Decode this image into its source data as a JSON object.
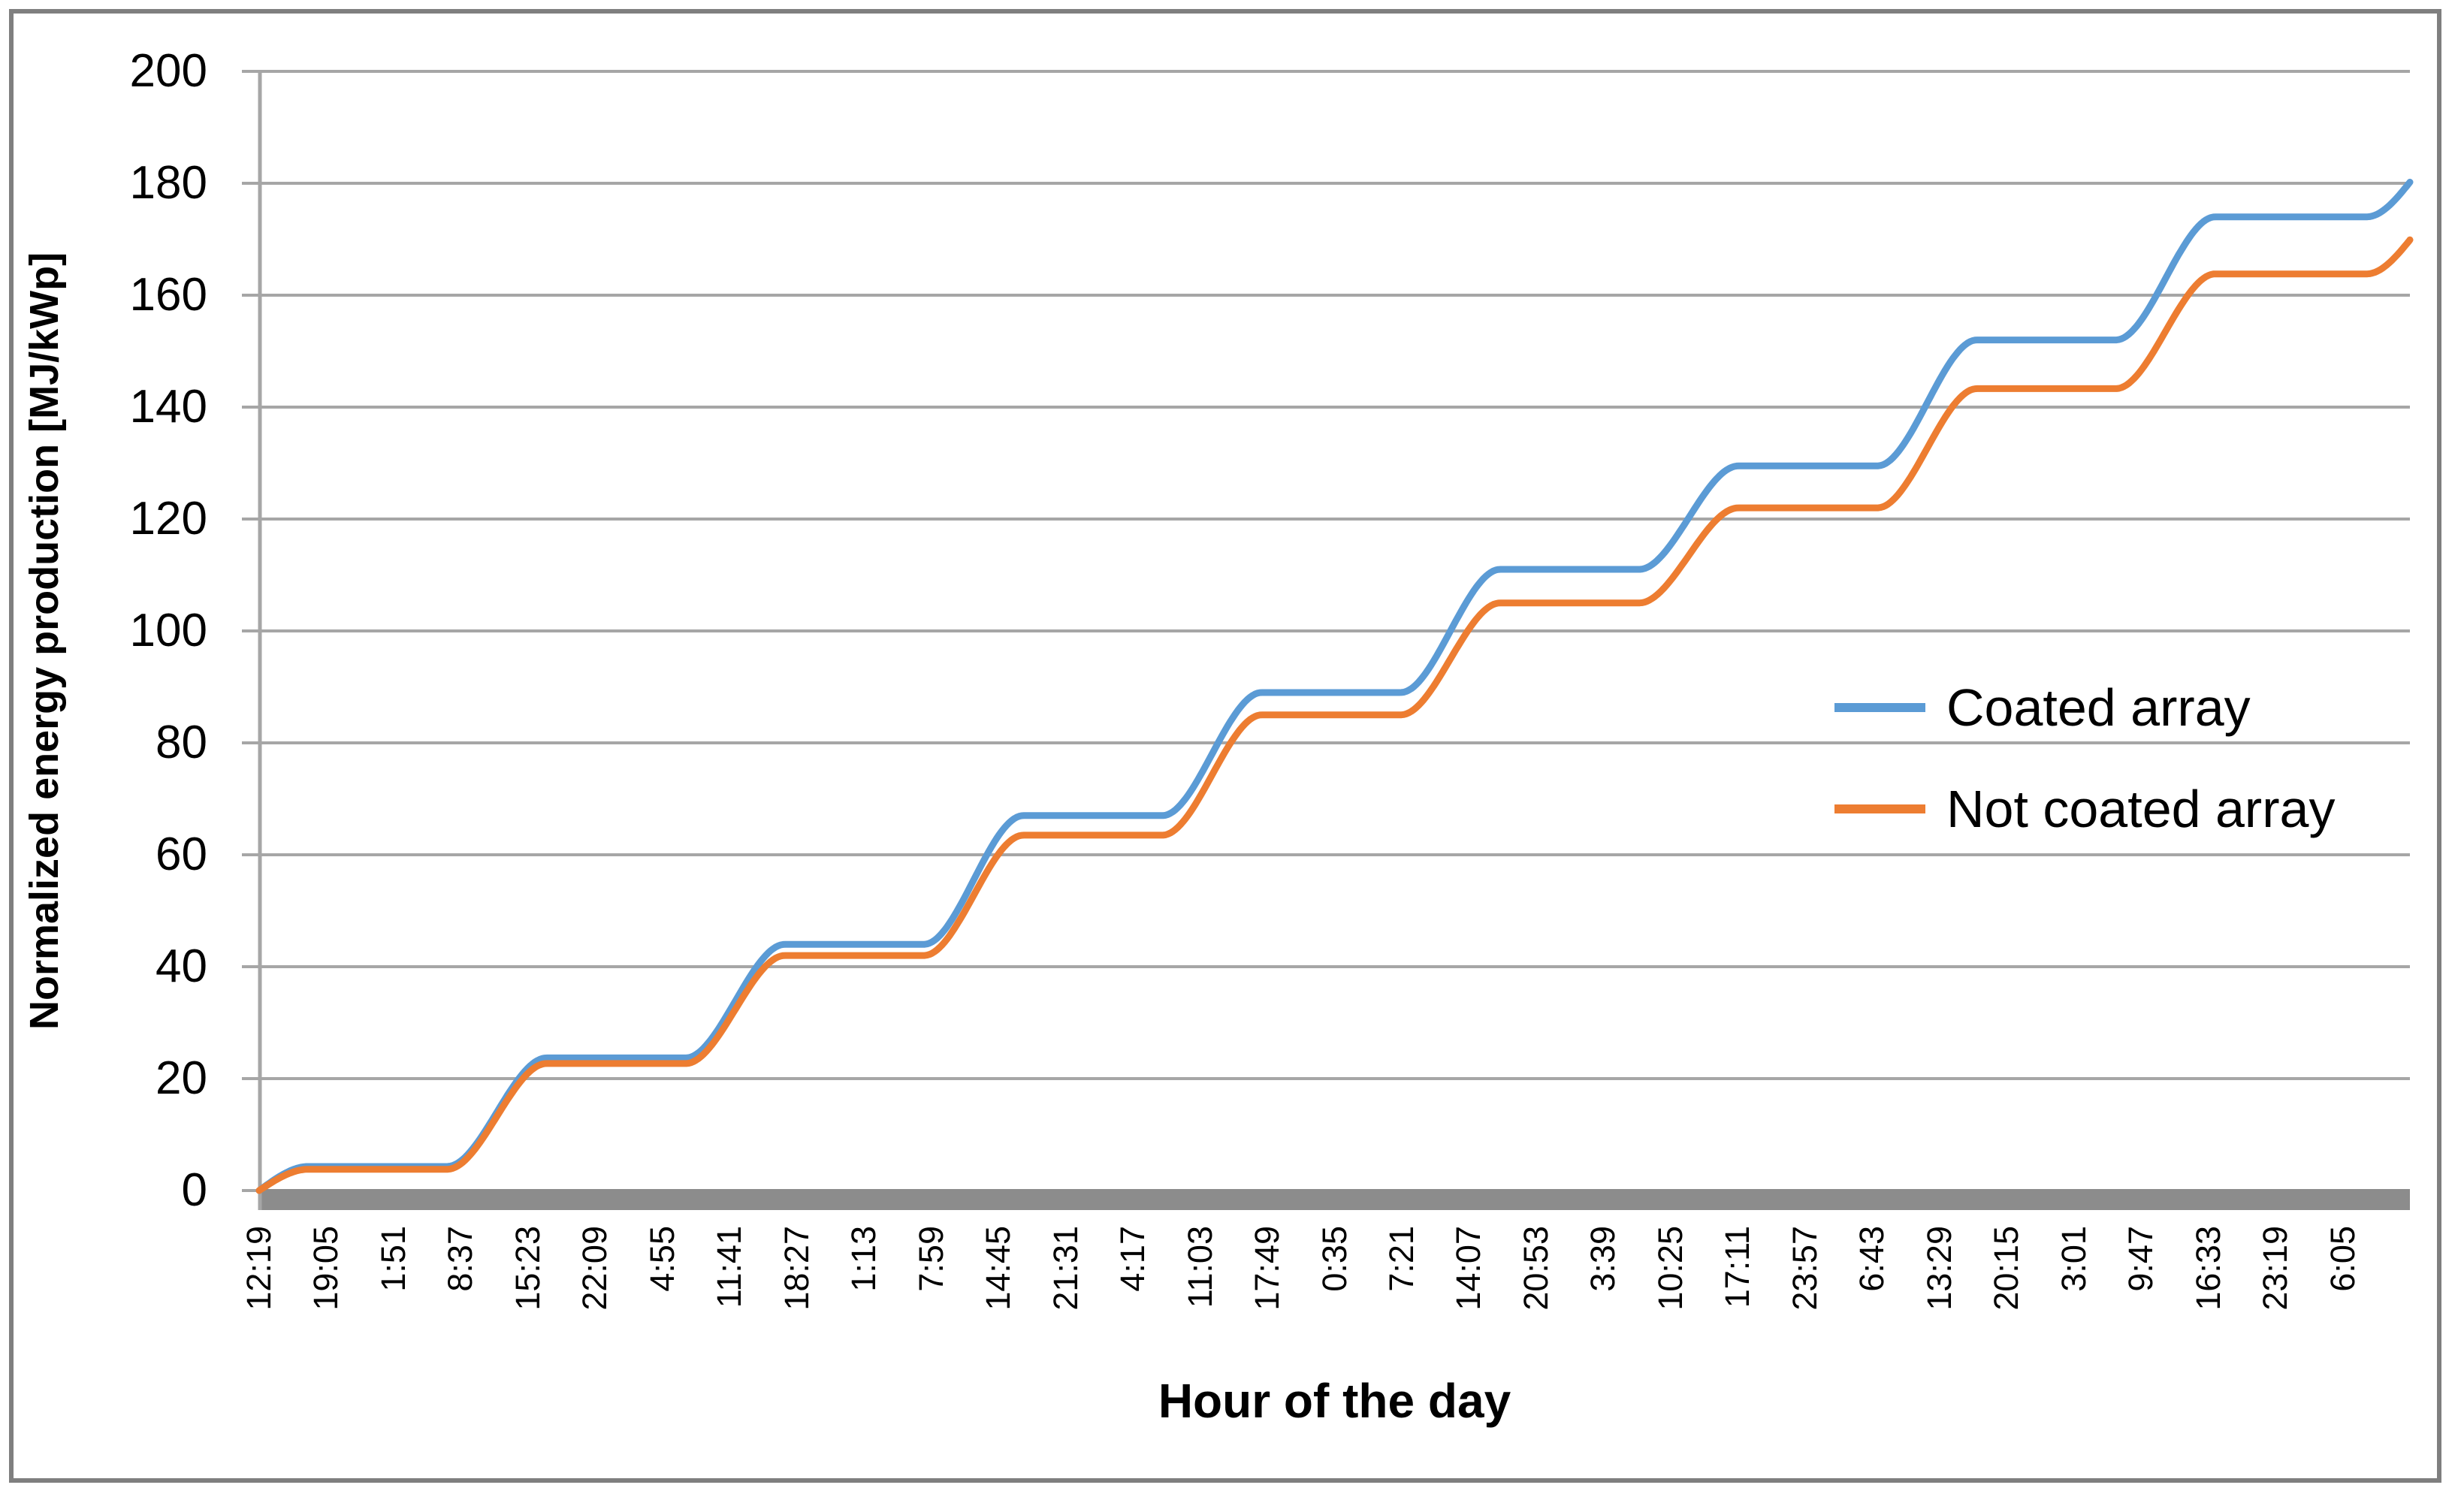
{
  "colors": {
    "background": "#FFFFFF",
    "frame_border": "#7F7F7F",
    "gridline": "#A6A6A6",
    "axis_band": "#8C8C8C",
    "text": "#000000",
    "series_coated": "#5B9BD5",
    "series_not_coated": "#ED7D31"
  },
  "chart_data": {
    "type": "line",
    "title": "",
    "ylabel": "Normalized energy production [MJ/kWp]",
    "xlabel": "Hour of the day",
    "ylim": [
      0,
      200
    ],
    "ytick_step": 20,
    "yticks": [
      0,
      20,
      40,
      60,
      80,
      100,
      120,
      140,
      160,
      180,
      200
    ],
    "grid": "horizontal",
    "legend_position": "inside-right-middle",
    "categories": [
      "12:19",
      "19:05",
      "1:51",
      "8:37",
      "15:23",
      "22:09",
      "4:55",
      "11:41",
      "18:27",
      "1:13",
      "7:59",
      "14:45",
      "21:31",
      "4:17",
      "11:03",
      "17:49",
      "0:35",
      "7:21",
      "14:07",
      "20:53",
      "3:39",
      "10:25",
      "17:11",
      "23:57",
      "6:43",
      "13:29",
      "20:15",
      "3:01",
      "9:47",
      "16:33",
      "23:19",
      "6:05"
    ],
    "x_tick_interval_hours": 6.7667,
    "series": [
      {
        "name": "Coated array",
        "color": "#5B9BD5",
        "plateaus": [
          4.3,
          23.7,
          44,
          67,
          89,
          111,
          129.5,
          152,
          174
        ],
        "last_day_gain": 15.4,
        "end_value": 180
      },
      {
        "name": "Not coated array",
        "color": "#ED7D31",
        "plateaus": [
          3.8,
          22.7,
          42,
          63.5,
          85,
          105,
          122,
          143.3,
          163.8
        ],
        "last_day_gain": 15.1,
        "end_value": 170
      }
    ],
    "model": {
      "start_time_hours": 12.3167,
      "end_time_hours": 228.85,
      "num_categories": 32,
      "category_step_hours": 6.7667,
      "day_ramp_start": 7.25,
      "day_ramp_end": 17.25,
      "last_day_ramp_start": 8.5,
      "sample_step_hours": 0.25
    },
    "description": "Cumulative normalized energy production over ~9 days; flat plateaus at night, S-shaped rise each day between about 07:15 and 17:15."
  }
}
